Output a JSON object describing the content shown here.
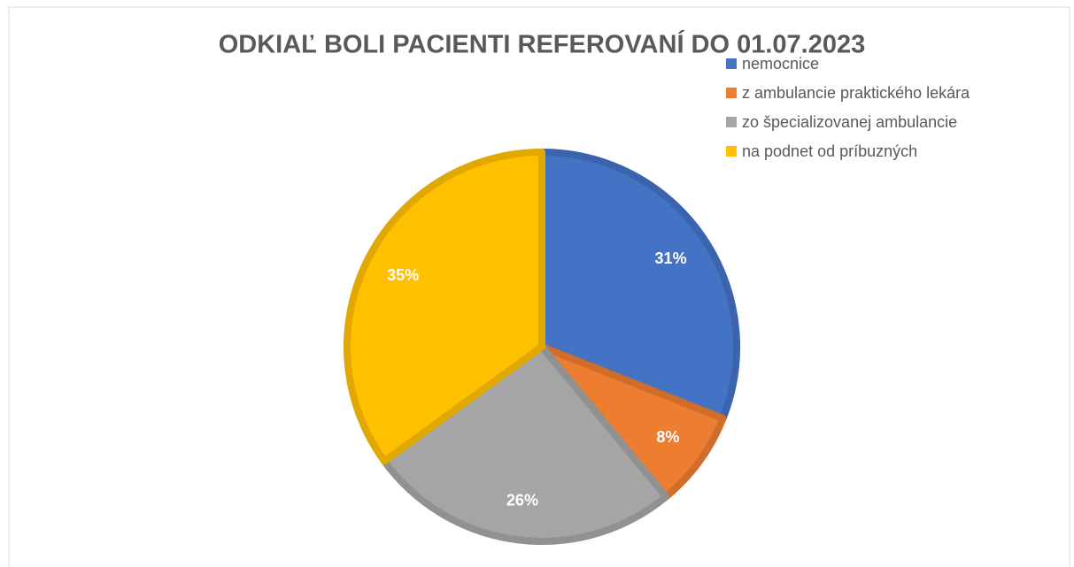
{
  "chart_data": {
    "type": "pie",
    "title": "ODKIAĽ BOLI PACIENTI REFEROVANÍ  DO 01.07.2023",
    "categories": [
      "nemocnice",
      "z ambulancie praktického lekára",
      "zo špecializovanej ambulancie",
      "na podnet od príbuzných"
    ],
    "values": [
      31,
      8,
      26,
      35
    ],
    "value_labels": [
      "31%",
      "8%",
      "26%",
      "35%"
    ],
    "colors": [
      "#4472c4",
      "#ed7d31",
      "#a5a5a5",
      "#ffc000"
    ],
    "legend": "top-right"
  }
}
